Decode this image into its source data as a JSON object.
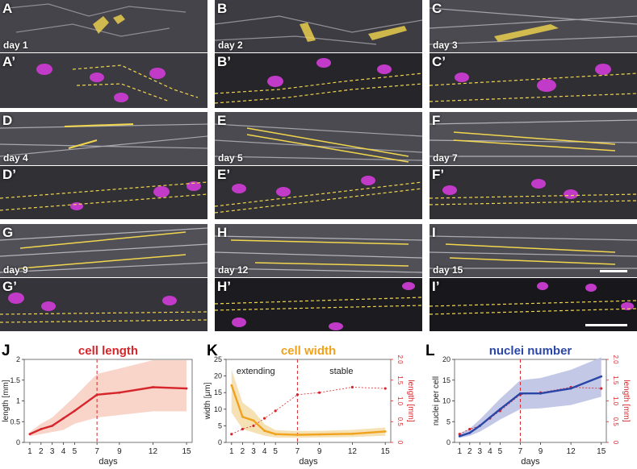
{
  "panels": {
    "A": {
      "label": "A",
      "day": "day 1"
    },
    "Ap": {
      "label": "A’"
    },
    "B": {
      "label": "B",
      "day": "day 2"
    },
    "Bp": {
      "label": "B’"
    },
    "C": {
      "label": "C",
      "day": "day 3"
    },
    "Cp": {
      "label": "C’"
    },
    "D": {
      "label": "D",
      "day": "day 4"
    },
    "Dp": {
      "label": "D’"
    },
    "E": {
      "label": "E",
      "day": "day 5"
    },
    "Ep": {
      "label": "E’"
    },
    "F": {
      "label": "F",
      "day": "day 7"
    },
    "Fp": {
      "label": "F’"
    },
    "G": {
      "label": "G",
      "day": "day 9"
    },
    "Gp": {
      "label": "G’"
    },
    "H": {
      "label": "H",
      "day": "day 12"
    },
    "Hp": {
      "label": "H’"
    },
    "I": {
      "label": "I",
      "day": "day 15"
    },
    "Ip": {
      "label": "I’"
    }
  },
  "colors": {
    "length": "#d7262b",
    "length_band": "#f7cdbf",
    "width": "#f0a21c",
    "width_band": "#f5dca8",
    "nuclei": "#2a47a8",
    "nuclei_band": "#b9bee3",
    "myotube": "#f2d64e",
    "nuclei_stain": "#c23ac8"
  },
  "graphs": {
    "J": {
      "label": "J"
    },
    "K": {
      "label": "K"
    },
    "L": {
      "label": "L"
    }
  },
  "chart_data": [
    {
      "type": "line",
      "title": "cell length",
      "xlabel": "days",
      "ylabel": "length [mm]",
      "x": [
        1,
        2,
        3,
        4,
        5,
        7,
        9,
        12,
        15
      ],
      "xticks": [
        "1",
        "2",
        "3",
        "4",
        "5",
        "7",
        "9",
        "12",
        "15"
      ],
      "ylim": [
        0,
        2
      ],
      "yticks": [
        "0",
        "0.5",
        "1",
        "1.5",
        "2"
      ],
      "series": [
        {
          "values": [
            0.2,
            0.32,
            0.4,
            0.58,
            0.76,
            1.15,
            1.2,
            1.33,
            1.3
          ]
        }
      ],
      "band_upper": [
        0.25,
        0.45,
        0.6,
        0.85,
        1.1,
        1.65,
        1.78,
        1.98,
        1.98
      ],
      "band_lower": [
        0.15,
        0.2,
        0.25,
        0.3,
        0.45,
        0.6,
        0.66,
        0.75,
        0.75
      ],
      "vline_x": 7
    },
    {
      "type": "line",
      "title": "cell width",
      "xlabel": "days",
      "ylabel": "width [μm]",
      "y2label": "length [mm]",
      "annotations": [
        "extending",
        "stable"
      ],
      "x": [
        1,
        2,
        3,
        4,
        5,
        7,
        9,
        12,
        15
      ],
      "xticks": [
        "1",
        "2",
        "3",
        "4",
        "5",
        "7",
        "9",
        "12",
        "15"
      ],
      "ylim": [
        0,
        25
      ],
      "yticks": [
        "0",
        "5",
        "10",
        "15",
        "20",
        "25"
      ],
      "y2lim": [
        0,
        2
      ],
      "y2ticks": [
        "0",
        "0.5",
        "1.0",
        "1.5",
        "2.0"
      ],
      "series": [
        {
          "values": [
            17.2,
            7.7,
            6.6,
            3.5,
            2.5,
            2.3,
            2.4,
            2.6,
            3.3
          ]
        },
        {
          "axis": "right",
          "values": [
            0.2,
            0.32,
            0.4,
            0.58,
            0.76,
            1.15,
            1.2,
            1.33,
            1.3
          ]
        }
      ],
      "band_upper": [
        22,
        12,
        9.5,
        5.5,
        3.7,
        3.4,
        3.5,
        3.8,
        4.5
      ],
      "band_lower": [
        9,
        4,
        3,
        2,
        1.5,
        1.4,
        1.5,
        1.6,
        2.0
      ],
      "vline_x": 7
    },
    {
      "type": "line",
      "title": "nuclei number",
      "xlabel": "days",
      "ylabel": "nuclei per cell",
      "y2label": "length [mm]",
      "x": [
        1,
        2,
        3,
        4,
        5,
        7,
        9,
        12,
        15
      ],
      "xticks": [
        "1",
        "2",
        "3",
        "4",
        "5",
        "7",
        "9",
        "12",
        "15"
      ],
      "ylim": [
        0,
        20
      ],
      "yticks": [
        "0",
        "5",
        "10",
        "15",
        "20"
      ],
      "y2lim": [
        0,
        2
      ],
      "y2ticks": [
        "0",
        "0.5",
        "1.0",
        "1.5",
        "2.0"
      ],
      "series": [
        {
          "values": [
            1.5,
            2.3,
            4,
            6,
            8,
            11.8,
            11.8,
            13,
            15.9
          ]
        },
        {
          "axis": "right",
          "values": [
            0.2,
            0.32,
            0.4,
            0.58,
            0.76,
            1.15,
            1.2,
            1.33,
            1.3
          ]
        }
      ],
      "band_upper": [
        2.2,
        3.3,
        5.5,
        8,
        10.5,
        15,
        15.5,
        17.5,
        20.5
      ],
      "band_lower": [
        1.1,
        1.6,
        2.6,
        4,
        5.5,
        8,
        8.2,
        9,
        11
      ],
      "vline_x": 7
    }
  ]
}
